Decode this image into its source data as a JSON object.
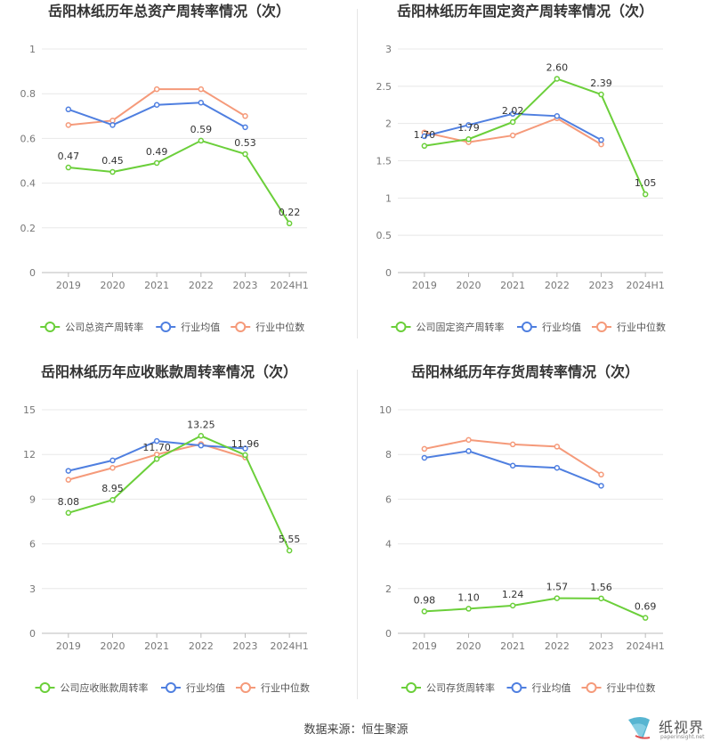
{
  "footer": {
    "source_label": "数据来源：恒生聚源"
  },
  "logo": {
    "text": "纸视界",
    "sub": "paperinsight.net"
  },
  "colors": {
    "company": "#6bcf3a",
    "avg": "#4f7fe0",
    "median": "#f59a7a",
    "grid": "#e8e8e8",
    "axis": "#bbbbbb",
    "tick": "#777777"
  },
  "chart_data": [
    {
      "type": "line",
      "title": "岳阳林纸历年总资产周转率情况（次）",
      "categories": [
        "2019",
        "2020",
        "2021",
        "2022",
        "2023",
        "2024H1"
      ],
      "ylim": [
        0,
        1
      ],
      "yticks": [
        "0",
        "0.2",
        "0.4",
        "0.6",
        "0.8",
        "1"
      ],
      "yticks_values": [
        0,
        0.2,
        0.4,
        0.6,
        0.8,
        1
      ],
      "grid": true,
      "legend": "bottom",
      "series": [
        {
          "name": "公司总资产周转率",
          "role": "company",
          "values": [
            0.47,
            0.45,
            0.49,
            0.59,
            0.53,
            0.22
          ],
          "labels": [
            "0.47",
            "0.45",
            "0.49",
            "0.59",
            "0.53",
            "0.22"
          ]
        },
        {
          "name": "行业均值",
          "role": "avg",
          "values": [
            0.73,
            0.66,
            0.75,
            0.76,
            0.65,
            null
          ]
        },
        {
          "name": "行业中位数",
          "role": "median",
          "values": [
            0.66,
            0.68,
            0.82,
            0.82,
            0.7,
            null
          ]
        }
      ]
    },
    {
      "type": "line",
      "title": "岳阳林纸历年固定资产周转率情况（次）",
      "categories": [
        "2019",
        "2020",
        "2021",
        "2022",
        "2023",
        "2024H1"
      ],
      "ylim": [
        0,
        3
      ],
      "yticks": [
        "0",
        "0.5",
        "1",
        "1.5",
        "2",
        "2.5",
        "3"
      ],
      "yticks_values": [
        0,
        0.5,
        1,
        1.5,
        2,
        2.5,
        3
      ],
      "grid": true,
      "legend": "bottom",
      "series": [
        {
          "name": "公司固定资产周转率",
          "role": "company",
          "values": [
            1.7,
            1.79,
            2.02,
            2.6,
            2.39,
            1.05
          ],
          "labels": [
            "1.70",
            "1.79",
            "2.02",
            "2.60",
            "2.39",
            "1.05"
          ]
        },
        {
          "name": "行业均值",
          "role": "avg",
          "values": [
            1.83,
            1.98,
            2.13,
            2.1,
            1.78,
            null
          ]
        },
        {
          "name": "行业中位数",
          "role": "median",
          "values": [
            1.88,
            1.75,
            1.84,
            2.07,
            1.72,
            null
          ]
        }
      ]
    },
    {
      "type": "line",
      "title": "岳阳林纸历年应收账款周转率情况（次）",
      "categories": [
        "2019",
        "2020",
        "2021",
        "2022",
        "2023",
        "2024H1"
      ],
      "ylim": [
        0,
        15
      ],
      "yticks": [
        "0",
        "3",
        "6",
        "9",
        "12",
        "15"
      ],
      "yticks_values": [
        0,
        3,
        6,
        9,
        12,
        15
      ],
      "grid": true,
      "legend": "bottom",
      "series": [
        {
          "name": "公司应收账款周转率",
          "role": "company",
          "values": [
            8.08,
            8.95,
            11.7,
            13.25,
            11.96,
            5.55
          ],
          "labels": [
            "8.08",
            "8.95",
            "11.70",
            "13.25",
            "11.96",
            "5.55"
          ]
        },
        {
          "name": "行业均值",
          "role": "avg",
          "values": [
            10.9,
            11.6,
            12.9,
            12.6,
            12.4,
            null
          ]
        },
        {
          "name": "行业中位数",
          "role": "median",
          "values": [
            10.3,
            11.1,
            12.0,
            12.7,
            11.8,
            null
          ]
        }
      ]
    },
    {
      "type": "line",
      "title": "岳阳林纸历年存货周转率情况（次）",
      "categories": [
        "2019",
        "2020",
        "2021",
        "2022",
        "2023",
        "2024H1"
      ],
      "ylim": [
        0,
        10
      ],
      "yticks": [
        "0",
        "2",
        "4",
        "6",
        "8",
        "10"
      ],
      "yticks_values": [
        0,
        2,
        4,
        6,
        8,
        10
      ],
      "grid": true,
      "legend": "bottom",
      "series": [
        {
          "name": "公司存货周转率",
          "role": "company",
          "values": [
            0.98,
            1.1,
            1.24,
            1.57,
            1.56,
            0.69
          ],
          "labels": [
            "0.98",
            "1.10",
            "1.24",
            "1.57",
            "1.56",
            "0.69"
          ]
        },
        {
          "name": "行业均值",
          "role": "avg",
          "values": [
            7.85,
            8.15,
            7.5,
            7.4,
            6.6,
            null
          ]
        },
        {
          "name": "行业中位数",
          "role": "median",
          "values": [
            8.25,
            8.65,
            8.45,
            8.35,
            7.1,
            null
          ]
        }
      ]
    }
  ]
}
